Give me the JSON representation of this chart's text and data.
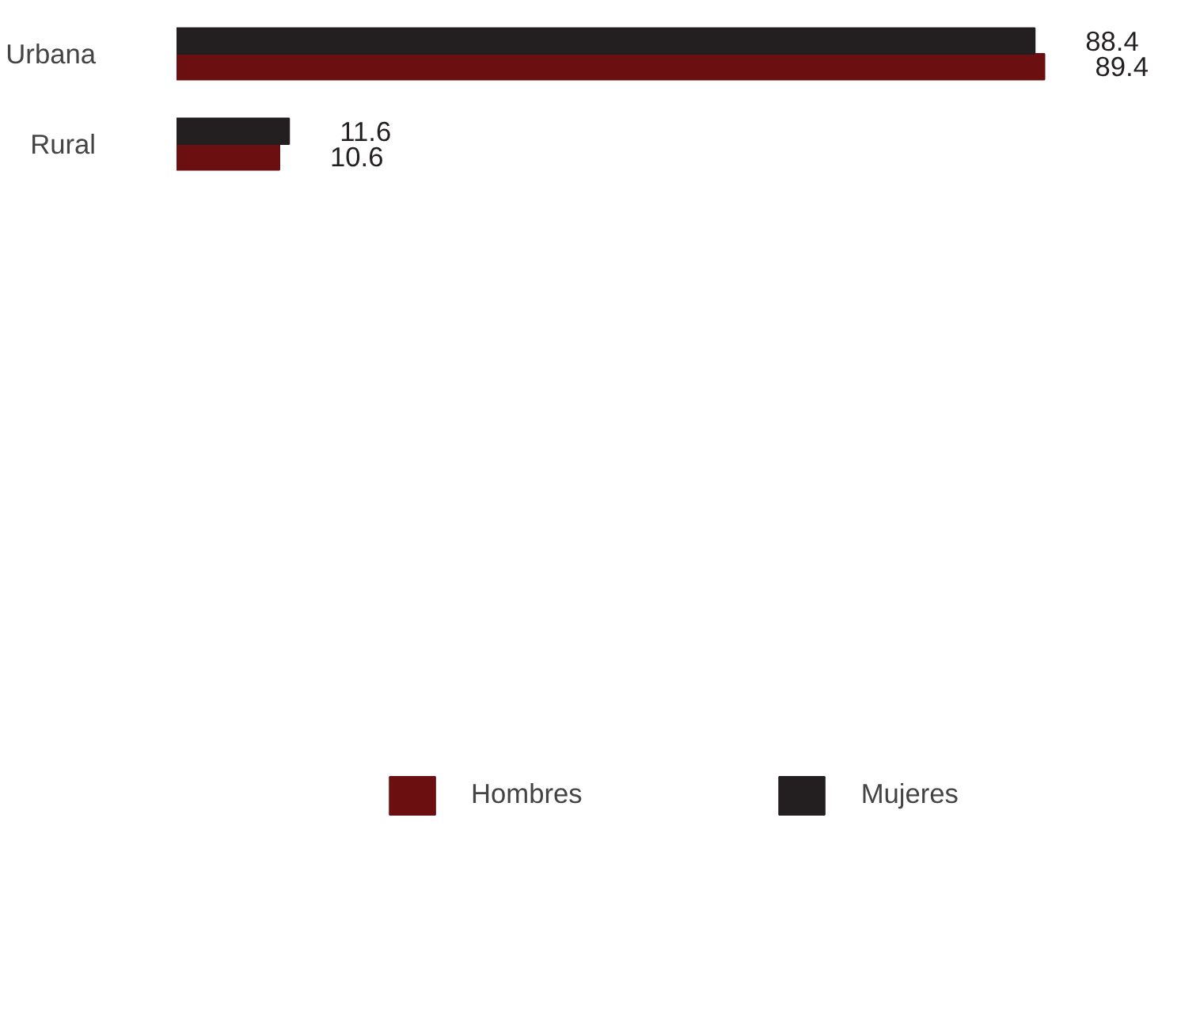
{
  "chart_data": {
    "type": "bar",
    "orientation": "horizontal",
    "categories": [
      "Urbana",
      "Rural"
    ],
    "series": [
      {
        "name": "Hombres",
        "color": "#6b0f10",
        "values": [
          89.4,
          10.6
        ]
      },
      {
        "name": "Mujeres",
        "color": "#231f20",
        "values": [
          88.4,
          11.6
        ]
      }
    ],
    "data_labels": true,
    "legend": "bottom",
    "tick_labels": "y",
    "grid": false
  }
}
